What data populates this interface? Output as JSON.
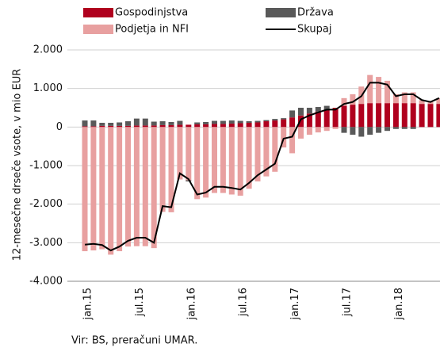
{
  "chart_data": {
    "type": "bar",
    "y_label": "12-mesečne drseče vsote, v mio EUR",
    "source": "Vir: BS, preračuni UMAR.",
    "categories": [
      "jan.15",
      null,
      null,
      null,
      null,
      null,
      "jul.15",
      null,
      null,
      null,
      null,
      null,
      "jan.16",
      null,
      null,
      null,
      null,
      null,
      "jul.16",
      null,
      null,
      null,
      null,
      null,
      "jan.17",
      null,
      null,
      null,
      null,
      null,
      "jul.17",
      null,
      null,
      null,
      null,
      null,
      "jan.18",
      null,
      null,
      null,
      null,
      null
    ],
    "series": [
      {
        "name": "Gospodinjstva",
        "color": "#b0001e",
        "values": [
          20,
          20,
          30,
          30,
          30,
          30,
          40,
          40,
          40,
          50,
          50,
          60,
          60,
          70,
          70,
          80,
          80,
          90,
          100,
          110,
          120,
          150,
          170,
          200,
          250,
          300,
          350,
          400,
          450,
          500,
          550,
          580,
          600,
          620,
          620,
          620,
          620,
          620,
          620,
          600,
          600,
          600
        ]
      },
      {
        "name": "Podjetja in NFI",
        "color": "#e8a0a0",
        "values": [
          -3220,
          -3200,
          -3170,
          -3310,
          -3220,
          -3100,
          -3090,
          -3090,
          -3140,
          -2200,
          -2210,
          -1360,
          -1380,
          -1870,
          -1830,
          -1710,
          -1710,
          -1750,
          -1780,
          -1600,
          -1410,
          -1280,
          -1160,
          -530,
          -680,
          -300,
          -200,
          -140,
          -100,
          -50,
          200,
          270,
          450,
          730,
          680,
          580,
          230,
          280,
          280,
          100,
          50,
          150
        ]
      },
      {
        "name": "Država",
        "color": "#595959",
        "values": [
          150,
          150,
          80,
          80,
          90,
          120,
          180,
          180,
          100,
          100,
          80,
          100,
          -30,
          50,
          60,
          80,
          80,
          80,
          60,
          40,
          40,
          30,
          40,
          30,
          180,
          200,
          150,
          120,
          100,
          0,
          -150,
          -200,
          -250,
          -200,
          -150,
          -100,
          -50,
          -50,
          -50,
          0,
          0,
          0
        ]
      },
      {
        "name": "Skupaj",
        "type": "line",
        "color": "#000000",
        "values": [
          -3050,
          -3030,
          -3060,
          -3200,
          -3100,
          -2950,
          -2870,
          -2870,
          -3000,
          -2050,
          -2080,
          -1200,
          -1350,
          -1750,
          -1700,
          -1550,
          -1550,
          -1580,
          -1620,
          -1450,
          -1250,
          -1100,
          -950,
          -300,
          -250,
          200,
          300,
          380,
          450,
          450,
          600,
          650,
          800,
          1150,
          1150,
          1100,
          800,
          850,
          850,
          700,
          650,
          750
        ]
      }
    ],
    "ylim": [
      -4000,
      2000
    ],
    "yticks": [
      {
        "value": 2000,
        "label": "2.000"
      },
      {
        "value": 1000,
        "label": "1.000"
      },
      0,
      {
        "value": -1000,
        "label": "-1.000"
      },
      {
        "value": -2000,
        "label": "-2.000"
      },
      {
        "value": -3000,
        "label": "-3.000"
      },
      {
        "value": -4000,
        "label": "-4.000"
      }
    ],
    "grid": true
  }
}
